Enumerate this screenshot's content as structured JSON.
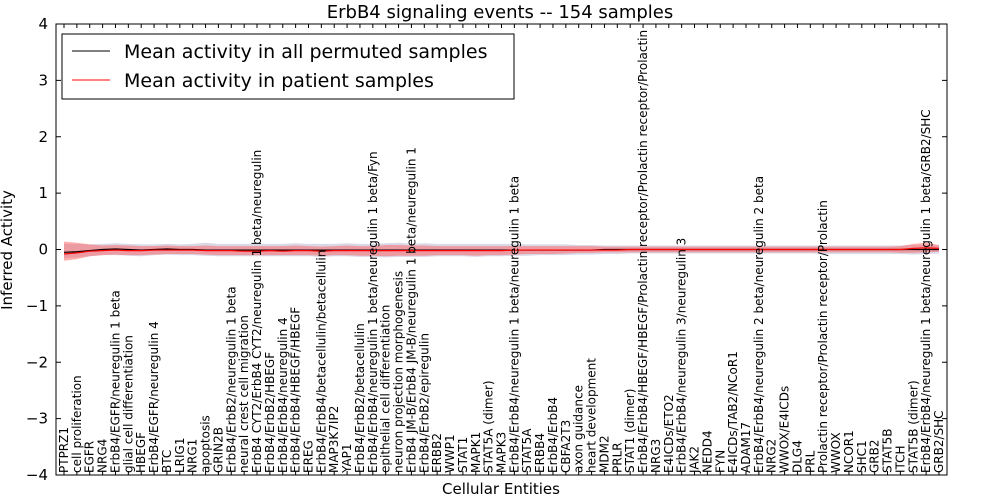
{
  "chart_data": {
    "type": "line",
    "title": "ErbB4 signaling events -- 154 samples",
    "xlabel": "Cellular Entities",
    "ylabel": "Inferred Activity",
    "ylim": [
      -4,
      4
    ],
    "yticks": [
      -4,
      -3,
      -2,
      -1,
      0,
      1,
      2,
      3,
      4
    ],
    "grid": false,
    "legend_position": "top-left",
    "categories": [
      "PTPRZ1",
      "cell proliferation",
      "EGFR",
      "NRG4",
      "ErbB4/EGFR/neuregulin 1 beta",
      "glial cell differentiation",
      "HBEGF",
      "ErbB4/EGFR/neuregulin 4",
      "BTC",
      "LRIG1",
      "NRG1",
      "apoptosis",
      "GRIN2B",
      "ErbB4/ErbB2/neuregulin 1 beta",
      "neural crest cell migration",
      "ErbB4 CYT2/ErbB4 CYT2/neuregulin 1 beta/neuregulin",
      "ErbB4/ErbB2/HBEGF",
      "ErbB4/ErbB4/neuregulin 4",
      "ErbB4/ErbB4/HBEGF/HBEGF",
      "EREG",
      "ErbB4/ErbB4/betacellulin/betacellulin",
      "MAP3K7IP2",
      "YAP1",
      "ErbB4/ErbB2/betacellulin",
      "ErbB4/ErbB4/neuregulin 1 beta/neuregulin 1 beta/Fyn",
      "epithelial cell differentiation",
      "neuron projection morphogenesis",
      "ErbB4 JM-B/ErbB4 JM-B/neuregulin 1 beta/neuregulin 1",
      "ErbB4/ErbB2/epiregulin",
      "ERBB2",
      "WWP1",
      "STAT1",
      "MAPK1",
      "STAT5A (dimer)",
      "MAPK3",
      "ErbB4/ErbB4/neuregulin 1 beta/neuregulin 1 beta",
      "STAT5A",
      "ERBB4",
      "ErbB4/ErbB4",
      "CBFA2T3",
      "axon guidance",
      "heart development",
      "MDM2",
      "PRLR",
      "STAT1 (dimer)",
      "ErbB4/ErbB4/HBEGF/HBEGF/Prolactin receptor/Prolactin receptor/Prolactin",
      "NRG3",
      "E4ICDs/ETO2",
      "ErbB4/ErbB4/neuregulin 3/neuregulin 3",
      "JAK2",
      "NEDD4",
      "FYN",
      "E4ICDs/TAB2/NCoR1",
      "ADAM17",
      "ErbB4/ErbB4/neuregulin 2 beta/neuregulin 2 beta",
      "NRG2",
      "WWOX/E4ICDs",
      "DLG4",
      "PRL",
      "Prolactin receptor/Prolactin receptor/Prolactin",
      "WWOX",
      "NCOR1",
      "SHC1",
      "GRB2",
      "STAT5B",
      "ITCH",
      "STAT5B (dimer)",
      "ErbB4/ErbB4/neuregulin 1 beta/neuregulin 1 beta/GRB2/SHC",
      "GRB2/SHC"
    ],
    "series": [
      {
        "name": "Mean activity in all permuted samples",
        "color": "#000000",
        "values": [
          -0.05,
          -0.04,
          -0.02,
          0.0,
          0.01,
          0.0,
          -0.01,
          0.0,
          0.01,
          0.0,
          0.0,
          -0.01,
          -0.01,
          -0.01,
          -0.01,
          -0.01,
          -0.01,
          -0.01,
          -0.01,
          -0.01,
          -0.01,
          -0.01,
          -0.01,
          -0.01,
          -0.01,
          -0.01,
          -0.01,
          -0.01,
          -0.01,
          -0.01,
          -0.01,
          -0.01,
          -0.01,
          -0.01,
          -0.01,
          -0.01,
          -0.01,
          -0.01,
          -0.01,
          -0.01,
          -0.01,
          -0.01,
          0.0,
          0.0,
          0.0,
          0.0,
          0.0,
          0.0,
          0.0,
          0.0,
          0.0,
          0.0,
          0.0,
          0.0,
          0.0,
          0.0,
          0.0,
          0.0,
          0.0,
          0.0,
          0.0,
          0.0,
          0.0,
          0.0,
          0.0,
          0.0,
          0.0,
          0.0,
          0.0
        ]
      },
      {
        "name": "Mean activity in patient samples",
        "color": "#ff0000",
        "values": [
          -0.08,
          -0.06,
          -0.03,
          -0.02,
          -0.01,
          -0.02,
          -0.02,
          -0.01,
          -0.01,
          -0.01,
          -0.01,
          -0.02,
          -0.02,
          -0.02,
          -0.03,
          -0.03,
          -0.02,
          -0.03,
          -0.02,
          -0.02,
          -0.03,
          -0.02,
          -0.02,
          -0.02,
          -0.02,
          -0.02,
          -0.02,
          -0.02,
          -0.02,
          -0.02,
          -0.02,
          -0.02,
          -0.02,
          -0.02,
          -0.02,
          -0.01,
          -0.01,
          -0.01,
          -0.01,
          -0.01,
          -0.01,
          -0.01,
          -0.01,
          -0.01,
          0.0,
          0.0,
          0.0,
          0.0,
          0.0,
          0.0,
          0.0,
          0.0,
          0.0,
          0.0,
          0.0,
          0.0,
          0.0,
          0.0,
          0.0,
          0.0,
          0.0,
          0.0,
          0.0,
          0.0,
          0.0,
          0.0,
          0.02,
          0.03,
          0.02
        ]
      }
    ],
    "bands": [
      {
        "series": "Mean activity in all permuted samples",
        "color": "#c8c8dc",
        "opacity": 0.7,
        "lower": [
          -0.15,
          -0.14,
          -0.12,
          -0.1,
          -0.1,
          -0.11,
          -0.12,
          -0.1,
          -0.09,
          -0.1,
          -0.1,
          -0.11,
          -0.12,
          -0.12,
          -0.12,
          -0.12,
          -0.12,
          -0.12,
          -0.12,
          -0.12,
          -0.13,
          -0.12,
          -0.12,
          -0.13,
          -0.13,
          -0.14,
          -0.13,
          -0.13,
          -0.13,
          -0.12,
          -0.12,
          -0.12,
          -0.13,
          -0.12,
          -0.12,
          -0.11,
          -0.11,
          -0.1,
          -0.1,
          -0.1,
          -0.09,
          -0.09,
          -0.08,
          -0.08,
          -0.07,
          -0.07,
          -0.07,
          -0.07,
          -0.07,
          -0.07,
          -0.07,
          -0.07,
          -0.07,
          -0.07,
          -0.07,
          -0.07,
          -0.07,
          -0.07,
          -0.07,
          -0.08,
          -0.08,
          -0.08,
          -0.08,
          -0.08,
          -0.08,
          -0.08,
          -0.09,
          -0.08,
          -0.07
        ],
        "upper": [
          0.1,
          0.1,
          0.09,
          0.1,
          0.11,
          0.1,
          0.09,
          0.09,
          0.1,
          0.09,
          0.1,
          0.12,
          0.1,
          0.1,
          0.1,
          0.1,
          0.1,
          0.1,
          0.11,
          0.1,
          0.1,
          0.1,
          0.11,
          0.1,
          0.1,
          0.11,
          0.12,
          0.1,
          0.11,
          0.1,
          0.1,
          0.1,
          0.1,
          0.1,
          0.1,
          0.1,
          0.09,
          0.09,
          0.09,
          0.09,
          0.08,
          0.08,
          0.07,
          0.07,
          0.07,
          0.07,
          0.07,
          0.07,
          0.07,
          0.07,
          0.07,
          0.07,
          0.07,
          0.07,
          0.07,
          0.07,
          0.07,
          0.07,
          0.07,
          0.07,
          0.07,
          0.07,
          0.07,
          0.07,
          0.07,
          0.07,
          0.08,
          0.08,
          0.07
        ]
      },
      {
        "series": "Mean activity in patient samples",
        "color": "#ff6a6a",
        "opacity": 0.55,
        "lower": [
          -0.2,
          -0.17,
          -0.12,
          -0.1,
          -0.09,
          -0.1,
          -0.1,
          -0.09,
          -0.08,
          -0.08,
          -0.08,
          -0.09,
          -0.1,
          -0.1,
          -0.1,
          -0.1,
          -0.1,
          -0.1,
          -0.1,
          -0.1,
          -0.11,
          -0.1,
          -0.1,
          -0.11,
          -0.11,
          -0.12,
          -0.11,
          -0.11,
          -0.11,
          -0.1,
          -0.1,
          -0.1,
          -0.11,
          -0.1,
          -0.1,
          -0.09,
          -0.08,
          -0.08,
          -0.08,
          -0.07,
          -0.06,
          -0.06,
          -0.05,
          -0.05,
          -0.05,
          -0.05,
          -0.05,
          -0.05,
          -0.05,
          -0.05,
          -0.05,
          -0.05,
          -0.05,
          -0.05,
          -0.05,
          -0.05,
          -0.05,
          -0.05,
          -0.05,
          -0.05,
          -0.05,
          -0.05,
          -0.05,
          -0.05,
          -0.05,
          -0.06,
          -0.06,
          -0.05,
          -0.04
        ],
        "upper": [
          0.14,
          0.12,
          0.09,
          0.07,
          0.08,
          0.07,
          0.06,
          0.06,
          0.07,
          0.06,
          0.06,
          0.07,
          0.06,
          0.06,
          0.06,
          0.06,
          0.06,
          0.06,
          0.07,
          0.06,
          0.05,
          0.06,
          0.07,
          0.06,
          0.06,
          0.08,
          0.08,
          0.07,
          0.07,
          0.06,
          0.06,
          0.06,
          0.06,
          0.06,
          0.06,
          0.06,
          0.06,
          0.06,
          0.06,
          0.06,
          0.06,
          0.06,
          0.05,
          0.05,
          0.05,
          0.05,
          0.05,
          0.05,
          0.05,
          0.05,
          0.05,
          0.05,
          0.05,
          0.05,
          0.05,
          0.05,
          0.05,
          0.05,
          0.05,
          0.05,
          0.05,
          0.05,
          0.05,
          0.05,
          0.05,
          0.06,
          0.1,
          0.12,
          0.08
        ]
      }
    ]
  }
}
